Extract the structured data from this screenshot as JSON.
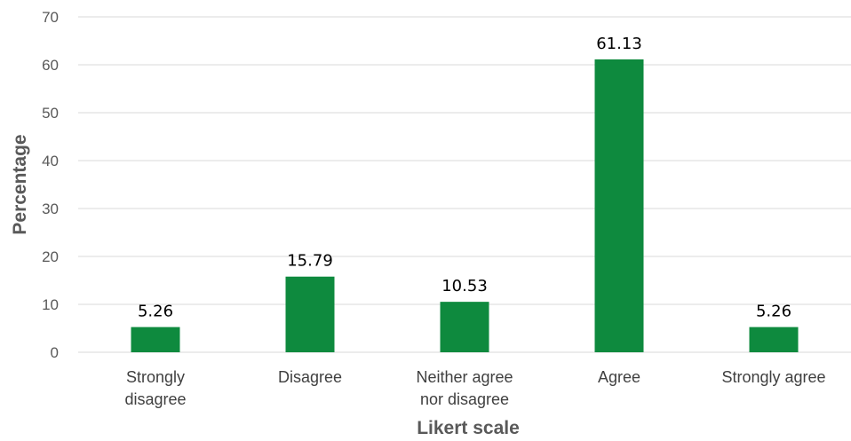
{
  "chart_data": {
    "type": "bar",
    "categories": [
      "Strongly disagree",
      "Disagree",
      "Neither agree nor disagree",
      "Agree",
      "Strongly agree"
    ],
    "category_label_lines": [
      [
        "Strongly",
        "disagree"
      ],
      [
        "Disagree"
      ],
      [
        "Neither agree",
        "nor disagree"
      ],
      [
        "Agree"
      ],
      [
        "Strongly agree"
      ]
    ],
    "values": [
      5.26,
      15.79,
      10.53,
      61.13,
      5.26
    ],
    "data_labels": [
      "5.26",
      "15.79",
      "10.53",
      "61.13",
      "5.26"
    ],
    "title": "",
    "xlabel": "Likert scale",
    "ylabel": "Percentage",
    "ylim": [
      0,
      70
    ],
    "yticks": [
      0,
      10,
      20,
      30,
      40,
      50,
      60,
      70
    ],
    "grid": true,
    "legend": "none",
    "bar_color": "#0e8a3e"
  }
}
